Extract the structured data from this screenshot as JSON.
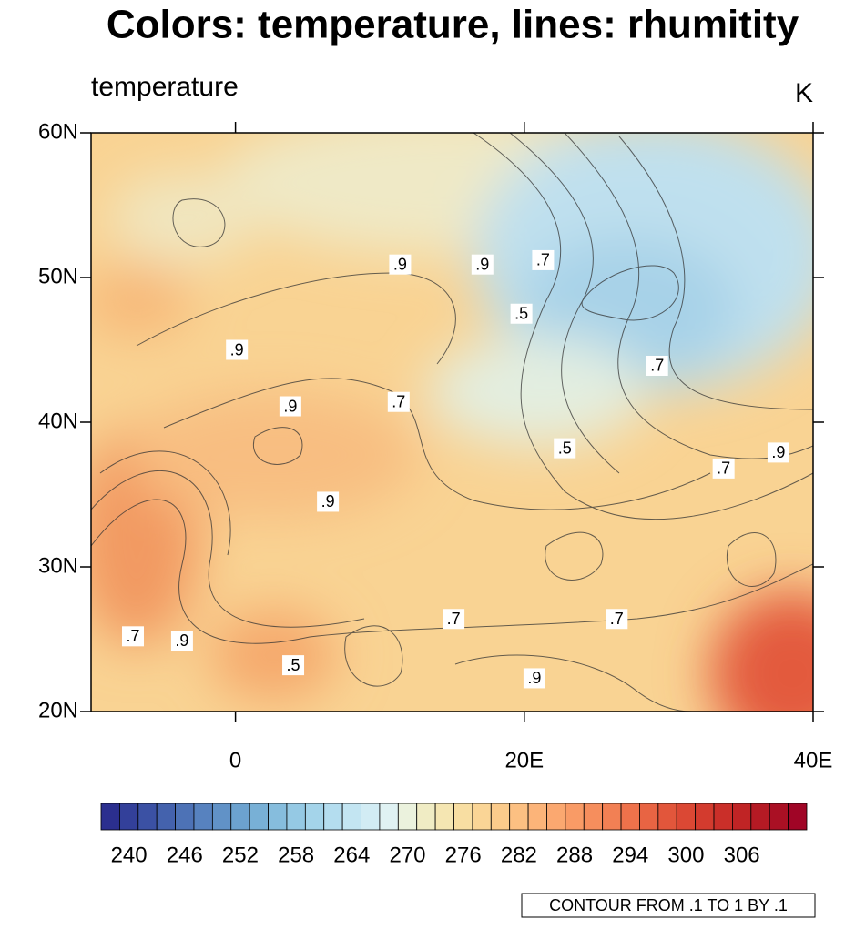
{
  "title": "Colors: temperature, lines: rhumitity",
  "left_string": "temperature",
  "right_string": "K",
  "lon_range": [
    -10,
    40
  ],
  "lat_range": [
    20,
    60
  ],
  "lat_ticks": [
    {
      "value": 20,
      "label": "20N"
    },
    {
      "value": 30,
      "label": "30N"
    },
    {
      "value": 40,
      "label": "40N"
    },
    {
      "value": 50,
      "label": "50N"
    },
    {
      "value": 60,
      "label": "60N"
    }
  ],
  "lon_ticks": [
    {
      "value": 0,
      "label": "0"
    },
    {
      "value": 20,
      "label": "20E"
    },
    {
      "value": 40,
      "label": "40E"
    }
  ],
  "colorbar": {
    "range": [
      237,
      313
    ],
    "colors": [
      "#2b2f8f",
      "#33409a",
      "#3b51a4",
      "#4462ad",
      "#4d72b6",
      "#5782bf",
      "#6192c7",
      "#6ca2cf",
      "#78b0d6",
      "#86bddd",
      "#95c9e4",
      "#a4d4ea",
      "#b4ddef",
      "#c3e5f2",
      "#d2ecf4",
      "#e0f2f3",
      "#ebf2dd",
      "#f0ecc4",
      "#f5e6b2",
      "#f8dea2",
      "#fad596",
      "#fbcb8b",
      "#fcc082",
      "#fcb479",
      "#fba870",
      "#f99b66",
      "#f68e5d",
      "#f28054",
      "#ee724b",
      "#e86443",
      "#e2563b",
      "#db4834",
      "#d33b2e",
      "#ca2f29",
      "#c02425",
      "#b51a24",
      "#aa1024",
      "#a00526"
    ],
    "labels": [
      240,
      246,
      252,
      258,
      264,
      270,
      276,
      282,
      288,
      294,
      300,
      306
    ]
  },
  "contour_info": "CONTOUR FROM .1 TO 1 BY .1",
  "contour_labels": [
    {
      "text": ".9",
      "lon": 11.4,
      "lat": 50.9
    },
    {
      "text": ".9",
      "lon": 17.1,
      "lat": 50.9
    },
    {
      "text": ".7",
      "lon": 21.3,
      "lat": 51.2
    },
    {
      "text": ".5",
      "lon": 19.8,
      "lat": 47.5
    },
    {
      "text": ".9",
      "lon": 0.1,
      "lat": 45.0
    },
    {
      "text": ".7",
      "lon": 29.2,
      "lat": 43.9
    },
    {
      "text": ".9",
      "lon": 3.8,
      "lat": 41.1
    },
    {
      "text": ".7",
      "lon": 11.3,
      "lat": 41.4
    },
    {
      "text": ".5",
      "lon": 22.8,
      "lat": 38.2
    },
    {
      "text": ".9",
      "lon": 37.6,
      "lat": 37.9
    },
    {
      "text": ".7",
      "lon": 33.8,
      "lat": 36.8
    },
    {
      "text": ".9",
      "lon": 6.4,
      "lat": 34.5
    },
    {
      "text": ".7",
      "lon": -7.1,
      "lat": 25.2
    },
    {
      "text": ".9",
      "lon": -3.7,
      "lat": 24.9
    },
    {
      "text": ".7",
      "lon": 15.1,
      "lat": 26.4
    },
    {
      "text": ".7",
      "lon": 26.4,
      "lat": 26.4
    },
    {
      "text": ".5",
      "lon": 4.0,
      "lat": 23.2
    },
    {
      "text": ".9",
      "lon": 20.7,
      "lat": 22.3
    }
  ]
}
